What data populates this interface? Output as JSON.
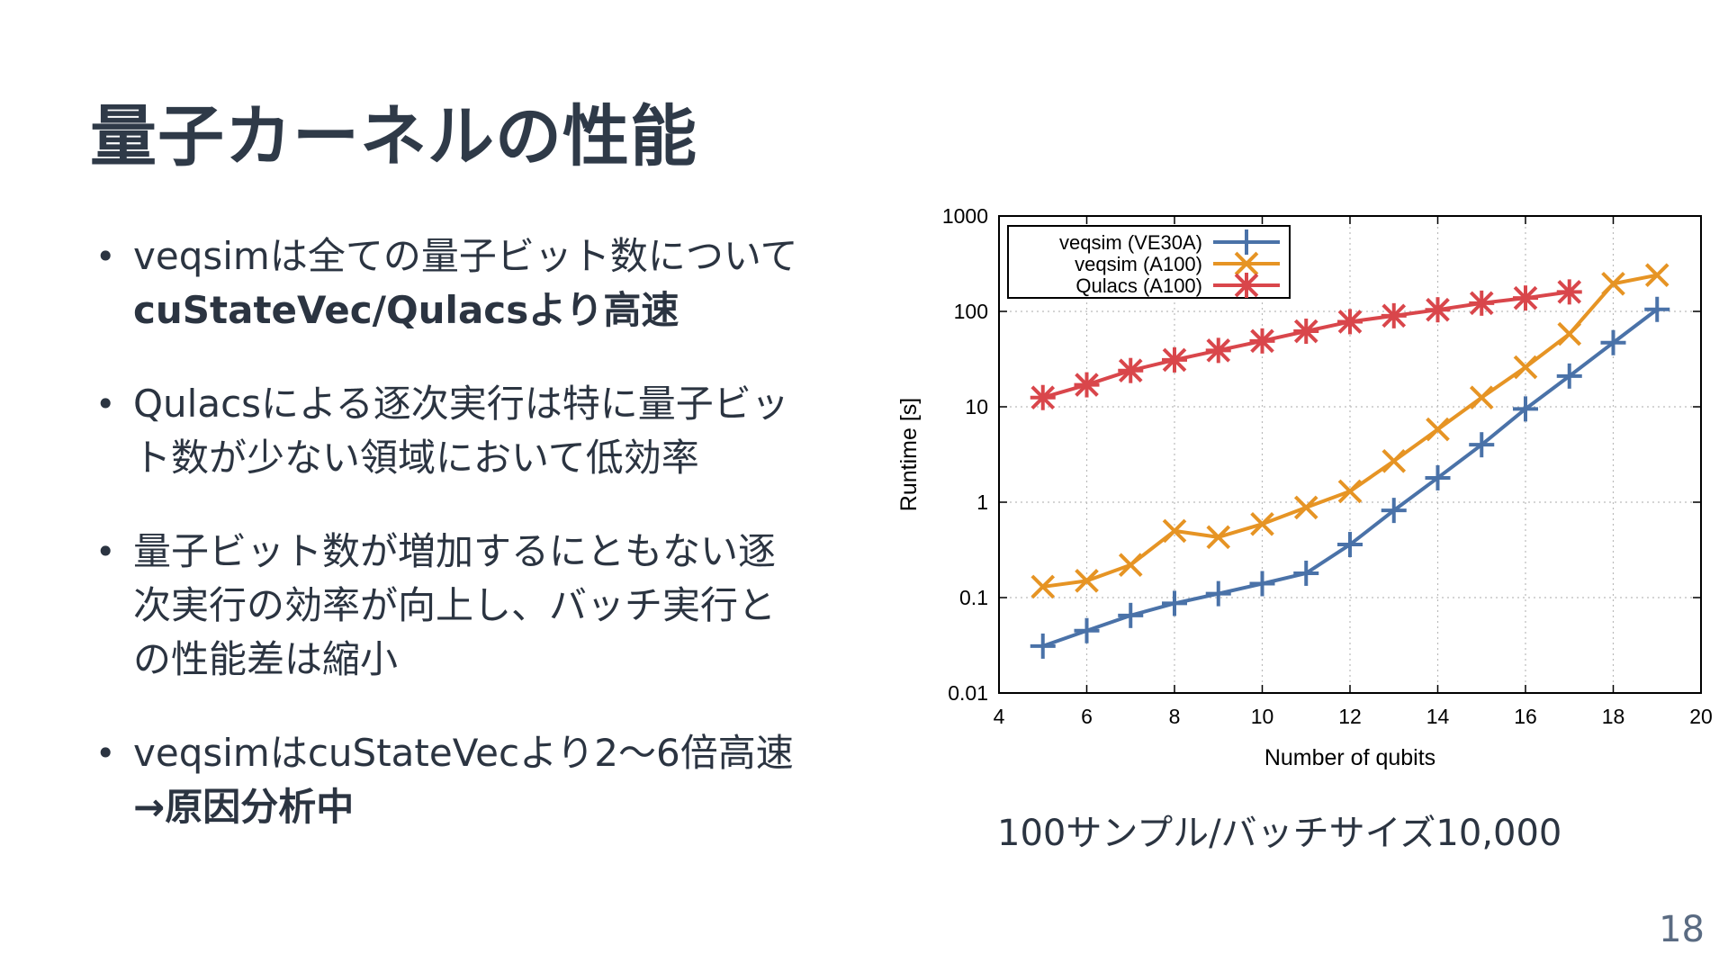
{
  "slide": {
    "title": "量子カーネルの性能",
    "bullets": [
      {
        "lines": [
          "veqsimは全ての量子ビット数について"
        ],
        "bold_lines": [
          "cuStateVec/Qulacsより高速"
        ]
      },
      {
        "lines": [
          "Qulacsによる逐次実行は特に量子ビッ",
          "ト数が少ない領域において低効率"
        ],
        "bold_lines": []
      },
      {
        "lines": [
          "量子ビット数が増加するにともない逐",
          "次実行の効率が向上し、バッチ実行と",
          "の性能差は縮小"
        ],
        "bold_lines": []
      },
      {
        "lines": [
          "veqsimはcuStateVecより2〜6倍高速"
        ],
        "bold_lines": [
          "→原因分析中"
        ]
      }
    ],
    "caption": "100サンプル/バッチサイズ10,000",
    "page_number": "18"
  },
  "chart_data": {
    "type": "line",
    "xlabel": "Number of qubits",
    "ylabel": "Runtime [s]",
    "xlim": [
      4,
      20
    ],
    "ylim": [
      0.01,
      1000
    ],
    "yscale": "log",
    "grid": true,
    "legend_position": "top-left",
    "x_ticks": [
      "4",
      "6",
      "8",
      "10",
      "12",
      "14",
      "16",
      "18",
      "20"
    ],
    "y_ticks": [
      "0.01",
      "0.1",
      "1",
      "10",
      "100",
      "1000"
    ],
    "series": [
      {
        "name": "veqsim (VE30A)",
        "color": "#4a72a8",
        "marker": "plus",
        "x": [
          5,
          6,
          7,
          8,
          9,
          10,
          11,
          12,
          13,
          14,
          15,
          16,
          17,
          18,
          19
        ],
        "values": [
          0.031,
          0.045,
          0.065,
          0.087,
          0.11,
          0.14,
          0.18,
          0.36,
          0.82,
          1.8,
          4.0,
          9.5,
          21,
          47,
          105
        ]
      },
      {
        "name": "veqsim (A100)",
        "color": "#e69424",
        "marker": "cross",
        "x": [
          5,
          6,
          7,
          8,
          9,
          10,
          11,
          12,
          13,
          14,
          15,
          16,
          17,
          18,
          19
        ],
        "values": [
          0.13,
          0.15,
          0.22,
          0.5,
          0.43,
          0.59,
          0.88,
          1.3,
          2.7,
          5.8,
          12.5,
          26,
          58,
          195,
          240
        ]
      },
      {
        "name": "Qulacs (A100)",
        "color": "#d9464b",
        "marker": "star",
        "x": [
          5,
          6,
          7,
          8,
          9,
          10,
          11,
          12,
          13,
          14,
          15,
          16,
          17
        ],
        "values": [
          12.5,
          17,
          24,
          31,
          39,
          49,
          62,
          78,
          90,
          104,
          122,
          138,
          160
        ]
      }
    ]
  }
}
